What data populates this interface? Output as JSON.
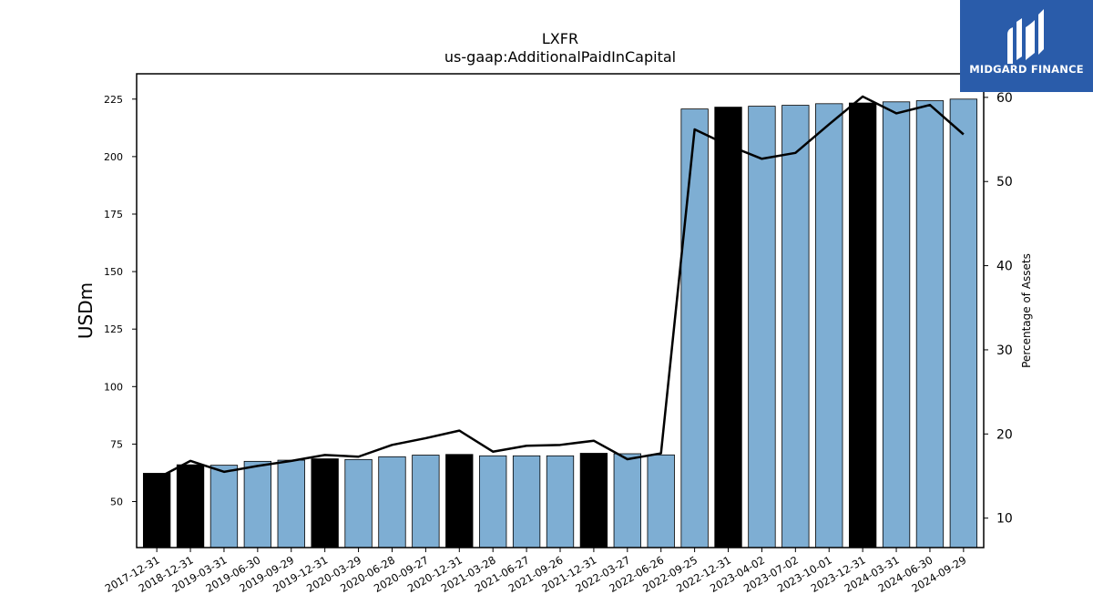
{
  "chart_data": {
    "type": "bar",
    "title": "LXFR",
    "subtitle": "us-gaap:AdditionalPaidInCapital",
    "ylabel": "USDm",
    "y2label": "Percentage of Assets",
    "ylim": [
      30,
      236
    ],
    "y2lim": [
      6.5,
      62.8
    ],
    "yticks": [
      50,
      75,
      100,
      125,
      150,
      175,
      200,
      225
    ],
    "y2ticks": [
      10,
      20,
      30,
      40,
      50,
      60
    ],
    "categories": [
      "2017-12-31",
      "2018-12-31",
      "2019-03-31",
      "2019-06-30",
      "2019-09-29",
      "2019-12-31",
      "2020-03-29",
      "2020-06-28",
      "2020-09-27",
      "2020-12-31",
      "2021-03-28",
      "2021-06-27",
      "2021-09-26",
      "2021-12-31",
      "2022-03-27",
      "2022-06-26",
      "2022-09-25",
      "2022-12-31",
      "2023-04-02",
      "2023-07-02",
      "2023-10-01",
      "2023-12-31",
      "2024-03-31",
      "2024-06-30",
      "2024-09-29"
    ],
    "series": [
      {
        "values": [
          62.3,
          66.0,
          65.8,
          67.5,
          68.0,
          68.6,
          68.3,
          69.5,
          70.2,
          70.5,
          69.9,
          69.9,
          69.9,
          71.0,
          70.8,
          70.3,
          220.7,
          221.5,
          221.9,
          222.3,
          223.0,
          223.3,
          223.8,
          224.3,
          225.0
        ],
        "annual": [
          true,
          true,
          false,
          false,
          false,
          true,
          false,
          false,
          false,
          true,
          false,
          false,
          false,
          true,
          false,
          false,
          false,
          true,
          false,
          false,
          false,
          true,
          false,
          false,
          false
        ]
      },
      {
        "values": [
          14.7,
          16.8,
          15.5,
          16.2,
          16.8,
          17.5,
          17.3,
          18.7,
          19.5,
          20.4,
          17.9,
          18.6,
          18.7,
          19.2,
          17.0,
          17.7,
          56.2,
          54.3,
          52.7,
          53.4,
          56.8,
          60.1,
          58.1,
          59.1,
          55.6
        ]
      }
    ],
    "colors": {
      "quarterly": "#7eaed3",
      "annual": "#000000",
      "line": "#000000"
    },
    "grid": false
  },
  "logo": {
    "text": "MIDGARD FINANCE"
  }
}
